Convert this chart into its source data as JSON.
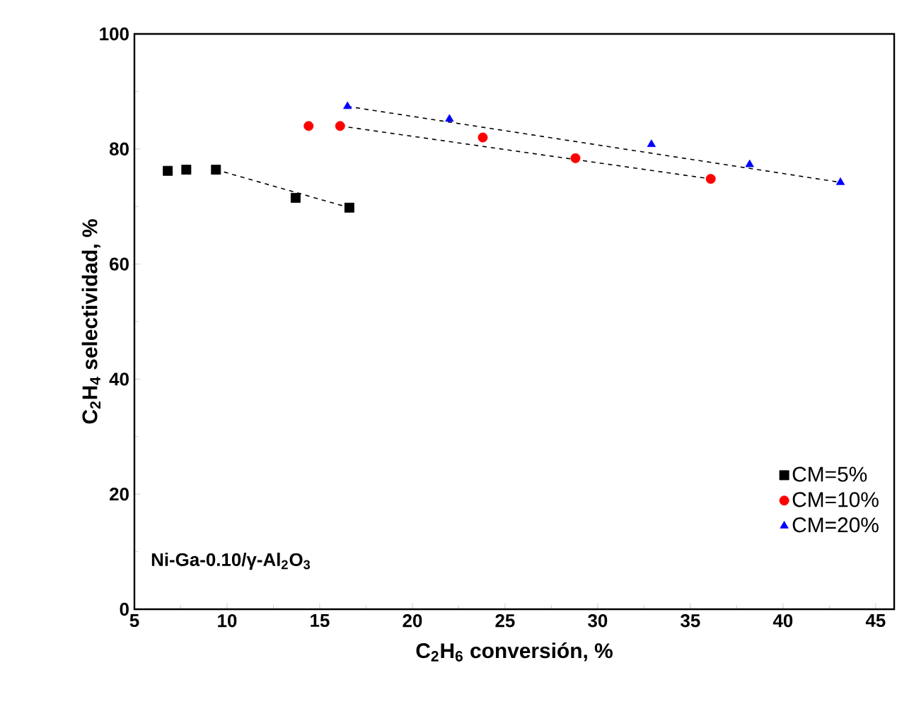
{
  "chart_data": {
    "type": "scatter",
    "xlabel": "C$_{2}$H$_{6}$ conversión, %",
    "ylabel": "C$_{2}$H$_{4}$ selectividad, %",
    "annotations": [
      "Ni-Ga-0.10/γ-Al$_{2}$O$_{3}$"
    ],
    "xlim": [
      5,
      46
    ],
    "ylim": [
      0,
      100
    ],
    "xticks": [
      5,
      10,
      15,
      20,
      25,
      30,
      35,
      40,
      45
    ],
    "yticks": [
      0,
      20,
      40,
      60,
      80,
      100
    ],
    "legend": "bottom right",
    "grid": false,
    "series": [
      {
        "name": "CM=5%",
        "color": "#000000",
        "marker": "square",
        "x": [
          6.8,
          7.8,
          9.4,
          13.7,
          16.6
        ],
        "values": [
          76.2,
          76.4,
          76.4,
          71.5,
          69.8
        ]
      },
      {
        "name": "CM=10%",
        "color": "#ff0000",
        "marker": "circle",
        "x": [
          14.4,
          16.1,
          23.8,
          28.8,
          36.1
        ],
        "values": [
          84.0,
          84.0,
          82.0,
          78.4,
          74.8
        ]
      },
      {
        "name": "CM=20%",
        "color": "#0000ff",
        "marker": "triangle",
        "x": [
          16.5,
          22.0,
          32.9,
          38.2,
          43.1
        ],
        "values": [
          87.4,
          85.2,
          80.8,
          77.3,
          74.2
        ]
      },
      {
        "type": "line",
        "color": "#000000",
        "line_style": "dashed",
        "x": [
          9.4,
          16.6
        ],
        "values": [
          76.4,
          69.8
        ]
      },
      {
        "type": "line",
        "color": "#000000",
        "line_style": "dashed",
        "x": [
          16.1,
          36.1
        ],
        "values": [
          84.0,
          74.8
        ]
      },
      {
        "type": "line",
        "color": "#000000",
        "line_style": "dashed",
        "x": [
          16.5,
          43.1
        ],
        "values": [
          87.4,
          74.2
        ]
      }
    ]
  }
}
